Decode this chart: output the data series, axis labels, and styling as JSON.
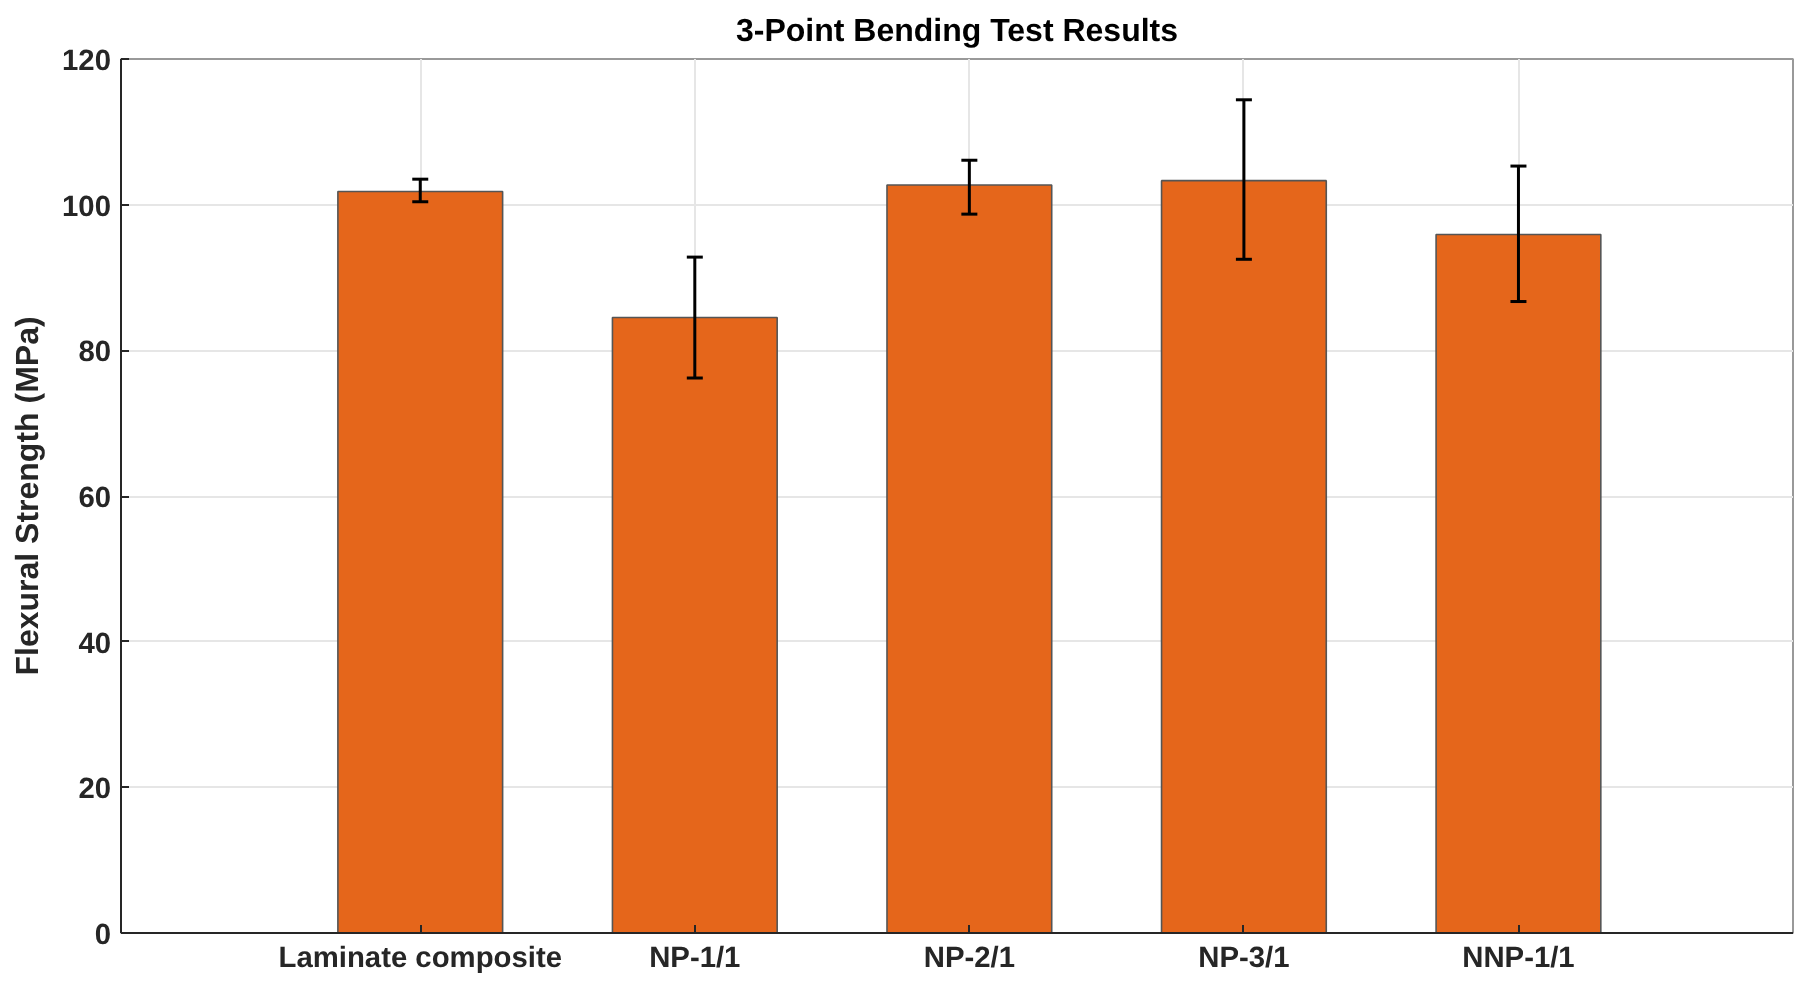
{
  "chart_data": {
    "type": "bar",
    "title": "3-Point Bending Test Results",
    "ylabel": "Flexural Strength (MPa)",
    "categories": [
      "Laminate composite",
      "NP-1/1",
      "NP-2/1",
      "NP-3/1",
      "NNP-1/1"
    ],
    "values": [
      101.8,
      84.5,
      102.7,
      103.3,
      95.9
    ],
    "errors": [
      [
        100.4,
        103.5
      ],
      [
        76.2,
        92.8
      ],
      [
        98.7,
        106.1
      ],
      [
        92.5,
        114.4
      ],
      [
        86.7,
        105.3
      ]
    ],
    "color": "#e5661b",
    "ylim": [
      0,
      120
    ],
    "yticks": [
      0,
      20,
      40,
      60,
      80,
      100,
      120
    ],
    "grid": true
  }
}
